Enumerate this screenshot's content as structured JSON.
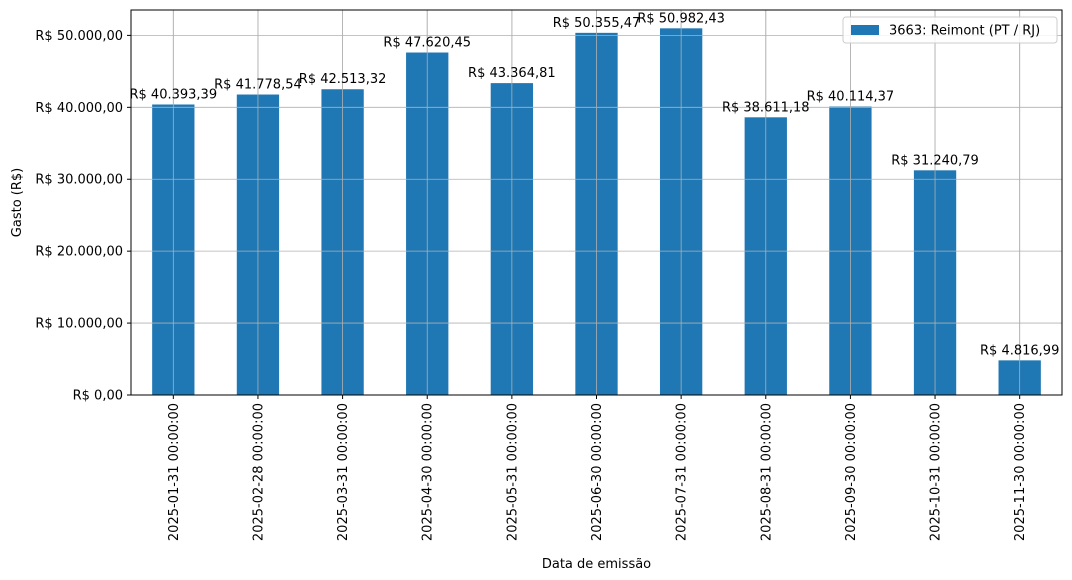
{
  "chart_data": {
    "type": "bar",
    "categories": [
      "2025-01-31 00:00:00",
      "2025-02-28 00:00:00",
      "2025-03-31 00:00:00",
      "2025-04-30 00:00:00",
      "2025-05-31 00:00:00",
      "2025-06-30 00:00:00",
      "2025-07-31 00:00:00",
      "2025-08-31 00:00:00",
      "2025-09-30 00:00:00",
      "2025-10-31 00:00:00",
      "2025-11-30 00:00:00"
    ],
    "series": [
      {
        "name": "3663: Reimont (PT / RJ)",
        "color": "#1f77b4",
        "values": [
          40393.39,
          41778.54,
          42513.32,
          47620.45,
          43364.81,
          50355.47,
          50982.43,
          38611.18,
          40114.37,
          31240.79,
          4816.99
        ],
        "labels": [
          "R$ 40.393,39",
          "R$ 41.778,54",
          "R$ 42.513,32",
          "R$ 47.620,45",
          "R$ 43.364,81",
          "R$ 50.355,47",
          "R$ 50.982,43",
          "R$ 38.611,18",
          "R$ 40.114,37",
          "R$ 31.240,79",
          "R$ 4.816,99"
        ]
      }
    ],
    "yticks": [
      0,
      10000,
      20000,
      30000,
      40000,
      50000
    ],
    "ytick_labels": [
      "R$ 0,00",
      "R$ 10.000,00",
      "R$ 20.000,00",
      "R$ 30.000,00",
      "R$ 40.000,00",
      "R$ 50.000,00"
    ],
    "ylim": [
      0,
      53531.55
    ],
    "xlabel": "Data de emissão",
    "ylabel": "Gasto (R$)",
    "grid": true,
    "legend_position": "top-right"
  }
}
